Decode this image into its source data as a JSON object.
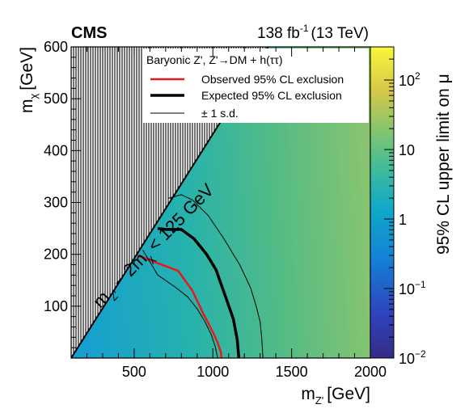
{
  "header": {
    "experiment": "CMS",
    "luminosity": "138 fb",
    "luminosity_exp": "-1",
    "energy": "(13 TeV)"
  },
  "colorbar": {
    "label": "95% CL upper limit on μ",
    "tick_labels": [
      {
        "base": "10",
        "exp": "2",
        "value": 100
      },
      {
        "base": "10",
        "exp": "",
        "value": 10
      },
      {
        "base": "1",
        "exp": "",
        "value": 1
      },
      {
        "base": "10",
        "exp": "−1",
        "value": 0.1
      },
      {
        "base": "10",
        "exp": "−2",
        "value": 0.01
      }
    ],
    "range": [
      0.01,
      300
    ],
    "scale": "log",
    "colors": [
      "#3b2a8c",
      "#1f6fd4",
      "#17a4c9",
      "#2bb99b",
      "#8cc66a",
      "#f2d64a",
      "#f9f93c"
    ]
  },
  "chart_data": {
    "type": "heatmap",
    "title": "",
    "xlabel": "m",
    "xlabel_sub": "Z'",
    "xlabel_unit": "[GeV]",
    "ylabel": "m",
    "ylabel_sub": "χ",
    "ylabel_unit": "[GeV]",
    "xlim": [
      100,
      2000
    ],
    "ylim": [
      0,
      600
    ],
    "xticks": [
      500,
      1000,
      1500,
      2000
    ],
    "yticks": [
      100,
      200,
      300,
      400,
      500,
      600
    ],
    "diagonal_label": "m",
    "diagonal_label_rest": " − 2m",
    "diagonal_label_sub1": "Z'",
    "diagonal_label_sub2": "χ",
    "diagonal_label_tail": " < 125 GeV",
    "kinematic_boundary": {
      "x": [
        100,
        725
      ],
      "y": [
        0,
        300
      ]
    },
    "legend": {
      "title": "Baryonic Z', Z'→DM + h(ττ)",
      "placement": "top-right",
      "entries": [
        {
          "label": "Observed 95% CL exclusion",
          "color": "#e8191a",
          "style": "thin-solid"
        },
        {
          "label": "Expected 95% CL exclusion",
          "color": "#000000",
          "style": "thick-solid"
        },
        {
          "label": "± 1 s.d.",
          "color": "#000000",
          "style": "hairline"
        }
      ]
    },
    "series": [
      {
        "name": "Observed 95% CL exclusion",
        "x": [
          520,
          650,
          780,
          870,
          940,
          1000,
          1030,
          1050,
          1055
        ],
        "y": [
          198,
          183,
          168,
          130,
          85,
          50,
          30,
          12,
          0
        ]
      },
      {
        "name": "Expected 95% CL exclusion",
        "x": [
          650,
          700,
          800,
          880,
          960,
          1020,
          1090,
          1130,
          1155,
          1165
        ],
        "y": [
          250,
          248,
          248,
          230,
          200,
          170,
          110,
          75,
          35,
          0
        ]
      },
      {
        "name": "+1 s.d.",
        "x": [
          715,
          800,
          870,
          970,
          1070,
          1170,
          1240,
          1275,
          1300,
          1310,
          1315,
          1318
        ],
        "y": [
          308,
          315,
          305,
          275,
          230,
          180,
          135,
          100,
          70,
          40,
          15,
          0
        ]
      },
      {
        "name": "-1 s.d.",
        "x": [
          555,
          650,
          760,
          840,
          900,
          950,
          990,
          1015,
          1025,
          1030
        ],
        "y": [
          208,
          160,
          137,
          118,
          95,
          70,
          45,
          22,
          8,
          0
        ]
      }
    ],
    "heatmap_limit": [
      {
        "x": 100,
        "values": [
          0.5,
          0.5,
          0.6,
          0.7
        ]
      },
      {
        "x": 2000,
        "values": [
          5,
          5,
          6,
          8
        ]
      }
    ]
  }
}
